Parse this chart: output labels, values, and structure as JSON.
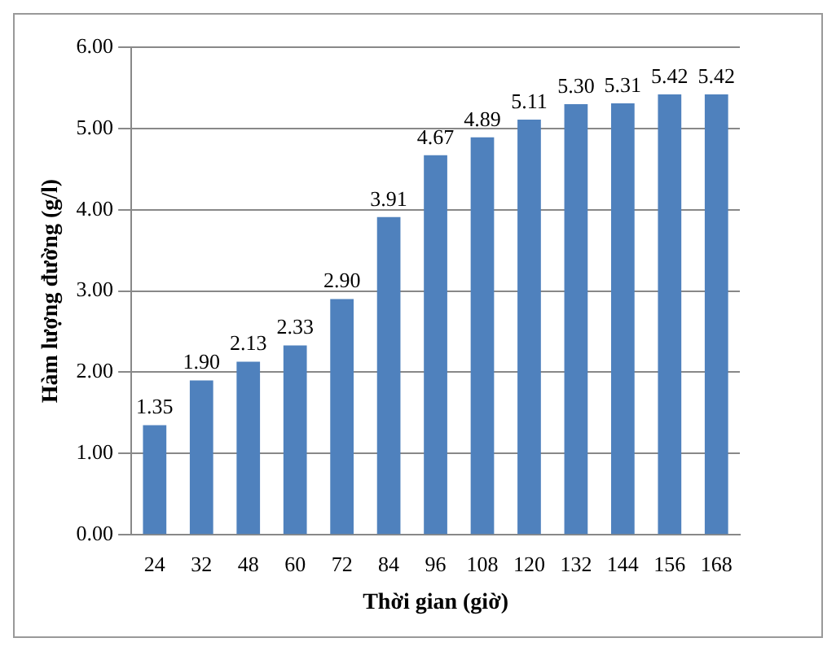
{
  "chart_data": {
    "type": "bar",
    "xlabel": "Thời gian (giờ)",
    "ylabel": "Hàm lượng đường (g/l)",
    "categories": [
      "24",
      "32",
      "48",
      "60",
      "72",
      "84",
      "96",
      "108",
      "120",
      "132",
      "144",
      "156",
      "168"
    ],
    "values": [
      1.35,
      1.9,
      2.13,
      2.33,
      2.9,
      3.91,
      4.67,
      4.89,
      5.11,
      5.3,
      5.31,
      5.42,
      5.42
    ],
    "value_labels": [
      "1.35",
      "1.90",
      "2.13",
      "2.33",
      "2.90",
      "3.91",
      "4.67",
      "4.89",
      "5.11",
      "5.30",
      "5.31",
      "5.42",
      "5.42"
    ],
    "color": "#4f81bd",
    "ylim": [
      0,
      6
    ],
    "yticks": [
      {
        "value": 0,
        "label": "0.00"
      },
      {
        "value": 1,
        "label": "1.00"
      },
      {
        "value": 2,
        "label": "2.00"
      },
      {
        "value": 3,
        "label": "3.00"
      },
      {
        "value": 4,
        "label": "4.00"
      },
      {
        "value": 5,
        "label": "5.00"
      },
      {
        "value": 6,
        "label": "6.00"
      }
    ],
    "grid": "y",
    "legend": false
  }
}
